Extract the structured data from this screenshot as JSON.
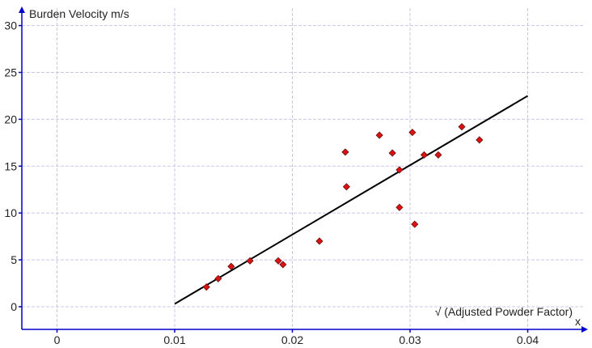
{
  "chart_data": {
    "type": "scatter",
    "ylabel": "Burden Velocity m/s",
    "xlabel": "√ (Adjusted Powder Factor)",
    "x_axis_marker": "x",
    "xlim": [
      -0.003,
      0.0455
    ],
    "ylim": [
      -2.5,
      31.5
    ],
    "xticks": [
      0,
      0.01,
      0.02,
      0.03,
      0.04
    ],
    "xtick_labels": [
      "0",
      "0.01",
      "0.02",
      "0.03",
      "0.04"
    ],
    "yticks": [
      0,
      5,
      10,
      15,
      20,
      25,
      30
    ],
    "ytick_labels": [
      "0",
      "5",
      "10",
      "15",
      "20",
      "25",
      "30"
    ],
    "grid": true,
    "colors": {
      "axis": "#0000cc",
      "grid": "#c8c8e6",
      "marker": "#dd1111",
      "marker_edge": "#661111",
      "line": "#000000"
    },
    "series": [
      {
        "kind": "points",
        "x": [
          0.0127,
          0.0137,
          0.0148,
          0.0164,
          0.0188,
          0.0192,
          0.0223,
          0.0245,
          0.0246,
          0.0274,
          0.0285,
          0.0291,
          0.0291,
          0.0302,
          0.0304,
          0.0312,
          0.0324,
          0.0344,
          0.0359
        ],
        "y": [
          2.1,
          3.0,
          4.3,
          4.9,
          4.9,
          4.5,
          7.0,
          16.5,
          12.8,
          18.3,
          16.4,
          14.6,
          10.6,
          18.6,
          8.8,
          16.2,
          16.2,
          19.2,
          17.8
        ]
      },
      {
        "kind": "fit",
        "x": [
          0.01,
          0.04
        ],
        "y": [
          0.3,
          22.5
        ]
      }
    ]
  }
}
